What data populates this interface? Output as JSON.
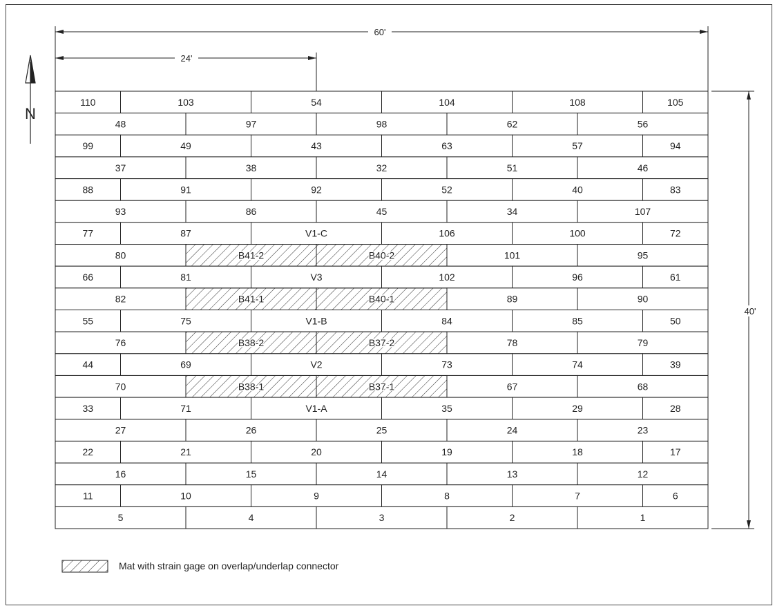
{
  "dimensions": {
    "overall_width": "60'",
    "partial_width": "24'",
    "height": "40'"
  },
  "north_label": "N",
  "legend_text": "Mat with strain gage on overlap/underlap connector",
  "rows": [
    [
      "110",
      "103",
      "54",
      "104",
      "108",
      "105"
    ],
    [
      "48",
      "97",
      "98",
      "62",
      "56"
    ],
    [
      "99",
      "49",
      "43",
      "63",
      "57",
      "94"
    ],
    [
      "37",
      "38",
      "32",
      "51",
      "46"
    ],
    [
      "88",
      "91",
      "92",
      "52",
      "40",
      "83"
    ],
    [
      "93",
      "86",
      "45",
      "34",
      "107"
    ],
    [
      "77",
      "87",
      "V1-C",
      "106",
      "100",
      "72"
    ],
    [
      "80",
      "B41-2",
      "B40-2",
      "101",
      "95"
    ],
    [
      "66",
      "81",
      "V3",
      "102",
      "96",
      "61"
    ],
    [
      "82",
      "B41-1",
      "B40-1",
      "89",
      "90"
    ],
    [
      "55",
      "75",
      "V1-B",
      "84",
      "85",
      "50"
    ],
    [
      "76",
      "B38-2",
      "B37-2",
      "78",
      "79"
    ],
    [
      "44",
      "69",
      "V2",
      "73",
      "74",
      "39"
    ],
    [
      "70",
      "B38-1",
      "B37-1",
      "67",
      "68"
    ],
    [
      "33",
      "71",
      "V1-A",
      "35",
      "29",
      "28"
    ],
    [
      "27",
      "26",
      "25",
      "24",
      "23"
    ],
    [
      "22",
      "21",
      "20",
      "19",
      "18",
      "17"
    ],
    [
      "16",
      "15",
      "14",
      "13",
      "12"
    ],
    [
      "11",
      "10",
      "9",
      "8",
      "7",
      "6"
    ],
    [
      "5",
      "4",
      "3",
      "2",
      "1"
    ]
  ],
  "gauged_mats": [
    "B41-2",
    "B40-2",
    "B41-1",
    "B40-1",
    "B38-2",
    "B37-2",
    "B38-1",
    "B37-1"
  ]
}
